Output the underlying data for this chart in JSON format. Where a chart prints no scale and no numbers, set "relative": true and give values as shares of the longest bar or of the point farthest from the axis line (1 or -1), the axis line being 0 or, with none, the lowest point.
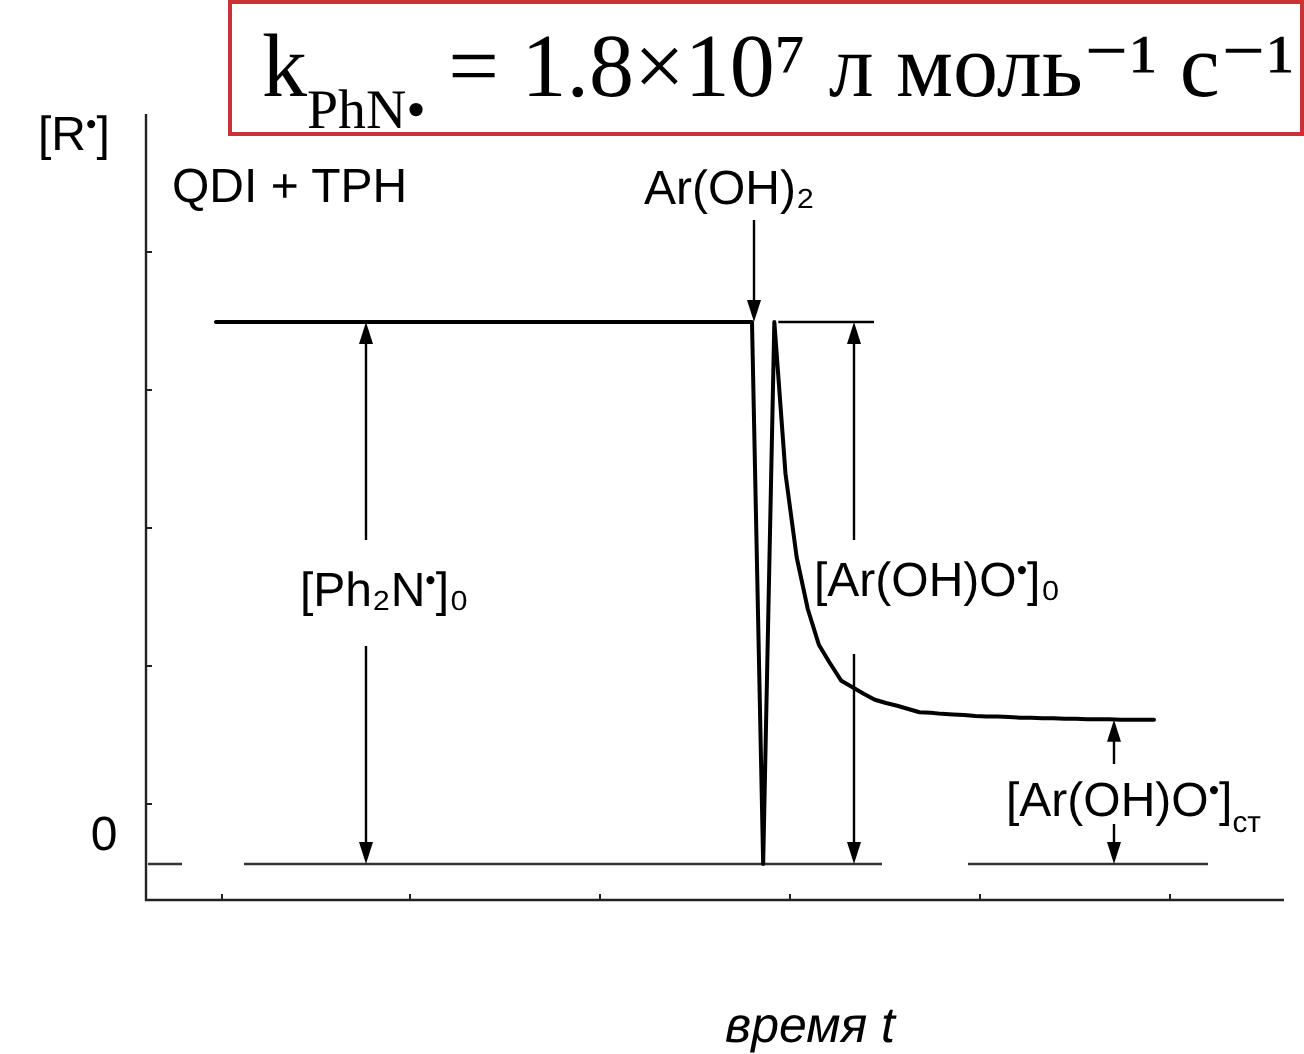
{
  "chart_data": {
    "type": "line",
    "relative": true,
    "title": "k$_{PhN•}$ = 1.8×10⁷ л моль⁻¹ с⁻¹",
    "xlabel": "время t",
    "ylabel": "[R$^{•}$]",
    "categories": [
      null,
      null,
      null,
      null,
      null,
      null,
      null,
      null,
      null,
      null,
      null,
      null,
      null,
      null,
      null,
      null,
      null,
      null,
      null,
      null,
      null,
      null,
      null,
      null,
      null,
      null,
      null,
      null,
      null,
      null,
      null,
      null,
      null,
      null,
      null,
      null,
      null,
      null,
      null,
      null,
      null,
      null,
      null,
      null,
      null,
      null,
      null,
      null,
      null,
      null,
      null,
      null,
      null,
      null,
      null,
      null,
      null,
      null,
      null,
      null,
      null,
      null,
      null,
      null,
      null,
      null,
      null,
      null,
      null,
      null,
      null,
      null,
      null,
      null,
      null,
      null,
      null,
      null,
      null,
      null,
      null,
      null,
      null,
      null,
      null
    ],
    "series": [
      {
        "color": "#000000",
        "values": [
          1,
          1,
          1,
          1,
          1,
          1,
          1,
          1,
          1,
          1,
          1,
          1,
          1,
          1,
          1,
          1,
          1,
          1,
          1,
          1,
          1,
          1,
          1,
          1,
          1,
          1,
          1,
          1,
          1,
          1,
          1,
          1,
          1,
          1,
          1,
          1,
          1,
          1,
          1,
          1,
          1,
          1,
          1,
          1,
          1,
          1,
          1,
          1,
          1,
          0,
          1,
          0.72,
          0.566,
          0.47,
          0.404,
          0.37,
          0.338,
          0.326,
          0.314,
          0.303,
          0.297,
          0.292,
          0.286,
          0.28,
          0.279,
          0.277,
          0.276,
          0.275,
          0.273,
          0.272,
          0.272,
          0.271,
          0.27,
          0.27,
          0.269,
          0.269,
          0.268,
          0.268,
          0.267,
          0.267,
          0.267,
          0.266,
          0.266,
          0.266,
          0.266
        ]
      }
    ],
    "ref_lines": [
      {
        "axis": "y",
        "value": 0,
        "label": "0",
        "color": "#333333"
      }
    ],
    "annotations": [
      "QDI + TPH",
      "Ar(OH)₂",
      "[Ph₂N$^{•}$]₀",
      "[Ar(OH)O$^{•}$]₀",
      "[Ar(OH)O$^{•}$]$_{ст}$"
    ]
  }
}
